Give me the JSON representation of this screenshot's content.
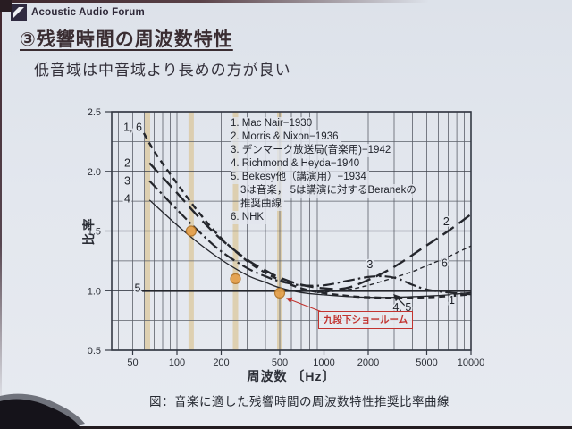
{
  "logo": {
    "text": "Acoustic Audio Forum"
  },
  "title": "③残響時間の周波数特性",
  "subtitle": "低音域は中音域より長めの方が良い",
  "caption": "図：音楽に適した残響時間の周波数特性推奨比率曲線",
  "annotation": {
    "label": "九段下ショールーム",
    "color": "#c2332f"
  },
  "chart_data": {
    "type": "line",
    "title": "",
    "xlabel": "周波数 〔Hz〕",
    "ylabel": "比率",
    "x_scale": "log",
    "xlim": [
      36,
      10000
    ],
    "ylim": [
      0.5,
      2.5
    ],
    "grid": true,
    "ink_color": "#24262c",
    "grid_minor_color": "#5c6069",
    "grid_major_color": "#3c414b",
    "x_ticks": [
      {
        "v": 50,
        "label": "50"
      },
      {
        "v": 100,
        "label": "100"
      },
      {
        "v": 200,
        "label": "200"
      },
      {
        "v": 500,
        "label": "500"
      },
      {
        "v": 1000,
        "label": "1000"
      },
      {
        "v": 2000,
        "label": "2000"
      },
      {
        "v": 5000,
        "label": "5000"
      },
      {
        "v": 10000,
        "label": "10000"
      }
    ],
    "y_ticks": [
      {
        "v": 0.5,
        "label": "0.5"
      },
      {
        "v": 1.0,
        "label": "1.0"
      },
      {
        "v": 1.5,
        "label": "1.5"
      },
      {
        "v": 2.0,
        "label": "2.0"
      },
      {
        "v": 2.5,
        "label": "2.5"
      }
    ],
    "x_grid": [
      40,
      50,
      60,
      70,
      80,
      90,
      100,
      200,
      300,
      400,
      500,
      600,
      700,
      800,
      900,
      1000,
      2000,
      3000,
      4000,
      5000,
      6000,
      7000,
      8000,
      9000,
      10000
    ],
    "y_grid_step": 0.25,
    "legend_lines": [
      {
        "text": "1. Mac Nair−1930",
        "indent": false
      },
      {
        "text": "2. Morris & Nixon−1936",
        "indent": false
      },
      {
        "text": "3. デンマーク放送局(音楽用)−1942",
        "indent": false
      },
      {
        "text": "4. Richmond & Heyda−1940",
        "indent": false
      },
      {
        "text": "5. Bekesy他（講演用）−1934",
        "indent": false
      },
      {
        "text": "3は音楽， 5は講演に対するBeranekの",
        "indent": true
      },
      {
        "text": "推奨曲線",
        "indent": true
      },
      {
        "text": "6. NHK",
        "indent": false
      }
    ],
    "series": [
      {
        "name": "1",
        "style": {
          "dash": "7 5",
          "width": 2.4
        },
        "points": [
          [
            55,
            2.4
          ],
          [
            70,
            2.17
          ],
          [
            100,
            1.9
          ],
          [
            140,
            1.66
          ],
          [
            200,
            1.44
          ],
          [
            300,
            1.25
          ],
          [
            400,
            1.15
          ],
          [
            500,
            1.09
          ],
          [
            700,
            1.02
          ],
          [
            1000,
            0.98
          ],
          [
            1500,
            0.955
          ],
          [
            2000,
            0.945
          ],
          [
            3000,
            0.94
          ],
          [
            5000,
            0.945
          ],
          [
            7000,
            0.955
          ],
          [
            10000,
            0.97
          ]
        ]
      },
      {
        "name": "2",
        "style": {
          "dash": "15 7",
          "width": 2.4
        },
        "points": [
          [
            65,
            2.07
          ],
          [
            100,
            1.82
          ],
          [
            140,
            1.62
          ],
          [
            200,
            1.43
          ],
          [
            300,
            1.26
          ],
          [
            400,
            1.17
          ],
          [
            500,
            1.11
          ],
          [
            700,
            1.05
          ],
          [
            1000,
            1.02
          ],
          [
            1400,
            1.02
          ],
          [
            2000,
            1.09
          ],
          [
            3000,
            1.2
          ],
          [
            5000,
            1.38
          ],
          [
            7000,
            1.5
          ],
          [
            10000,
            1.64
          ]
        ]
      },
      {
        "name": "3",
        "style": {
          "dash": "13 4 2.5 4",
          "width": 2.2
        },
        "points": [
          [
            65,
            1.92
          ],
          [
            100,
            1.68
          ],
          [
            140,
            1.5
          ],
          [
            200,
            1.33
          ],
          [
            300,
            1.19
          ],
          [
            400,
            1.12
          ],
          [
            500,
            1.08
          ],
          [
            700,
            1.045
          ],
          [
            1000,
            1.045
          ],
          [
            1400,
            1.08
          ],
          [
            2000,
            1.115
          ],
          [
            2600,
            1.12
          ],
          [
            3200,
            1.1
          ],
          [
            4000,
            1.05
          ],
          [
            5000,
            1.01
          ],
          [
            7000,
            0.985
          ],
          [
            10000,
            0.97
          ]
        ]
      },
      {
        "name": "4",
        "style": {
          "dash": "",
          "width": 1.3
        },
        "points": [
          [
            65,
            1.76
          ],
          [
            100,
            1.55
          ],
          [
            140,
            1.4
          ],
          [
            200,
            1.26
          ],
          [
            300,
            1.13
          ],
          [
            400,
            1.07
          ],
          [
            500,
            1.025
          ],
          [
            700,
            0.985
          ],
          [
            1000,
            0.965
          ],
          [
            1500,
            0.95
          ],
          [
            2000,
            0.945
          ],
          [
            3000,
            0.945
          ],
          [
            5000,
            0.955
          ],
          [
            7000,
            0.965
          ],
          [
            10000,
            0.985
          ]
        ]
      },
      {
        "name": "5",
        "style": {
          "dash": "",
          "width": 2.6
        },
        "points": [
          [
            58,
            1.0
          ],
          [
            1000,
            1.0
          ],
          [
            3000,
            1.0
          ],
          [
            6000,
            1.0
          ],
          [
            10000,
            1.0
          ]
        ]
      },
      {
        "name": "6",
        "style": {
          "dash": "5 3.5",
          "width": 1.4
        },
        "points": [
          [
            900,
            0.985
          ],
          [
            1400,
            1.005
          ],
          [
            2000,
            1.045
          ],
          [
            3000,
            1.11
          ],
          [
            4000,
            1.16
          ],
          [
            5000,
            1.21
          ],
          [
            7000,
            1.285
          ],
          [
            10000,
            1.375
          ]
        ]
      }
    ],
    "curve_labels": [
      {
        "text": "1, 6",
        "f": 50,
        "r": 2.37
      },
      {
        "text": "2",
        "f": 46,
        "r": 2.07
      },
      {
        "text": "3",
        "f": 46,
        "r": 1.92
      },
      {
        "text": "4",
        "f": 46,
        "r": 1.77
      },
      {
        "text": "5",
        "f": 54,
        "r": 1.02
      },
      {
        "text": "2",
        "f": 6800,
        "r": 1.58
      },
      {
        "text": "6",
        "f": 6600,
        "r": 1.23
      },
      {
        "text": "3",
        "f": 2050,
        "r": 1.22
      },
      {
        "text": "4, 5",
        "f": 3400,
        "r": 0.86
      },
      {
        "text": "1",
        "f": 7400,
        "r": 0.92
      }
    ],
    "highlight_bands": {
      "frequencies": [
        63,
        125,
        250,
        500
      ],
      "color": "#d8bc7e",
      "opacity": 0.55,
      "width": 6
    },
    "markers": {
      "color": "#e5a04b",
      "edge": "#b07226",
      "points": [
        {
          "f": 125,
          "r": 1.5
        },
        {
          "f": 250,
          "r": 1.1
        },
        {
          "f": 500,
          "r": 0.98
        }
      ]
    },
    "pointer_arrow": {
      "from_f": 3550,
      "from_r": 0.875,
      "to_f": 3000,
      "to_r": 0.965
    },
    "callout_leader": {
      "attach_marker": 2
    }
  }
}
